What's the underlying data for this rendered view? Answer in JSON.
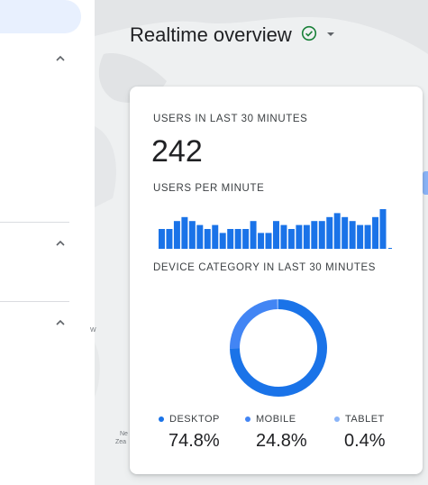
{
  "header": {
    "title": "Realtime overview",
    "status_icon": "check-circle-icon",
    "menu_icon": "dropdown-arrow-icon"
  },
  "nav": {
    "collapse_icon": "chevron-up-icon",
    "sections": 3
  },
  "card": {
    "users_label": "USERS IN LAST 30 MINUTES",
    "users_value": "242",
    "per_minute_label": "USERS PER MINUTE",
    "device_label": "DEVICE CATEGORY IN LAST 30 MINUTES",
    "legend": [
      {
        "label": "DESKTOP",
        "value": "74.8%",
        "color": "#1a73e8"
      },
      {
        "label": "MOBILE",
        "value": "24.8%",
        "color": "#4285f4"
      },
      {
        "label": "TABLET",
        "value": "0.4%",
        "color": "#8ab4f8"
      }
    ]
  },
  "map_labels": {
    "w": "W",
    "ne": "Ne",
    "ze": "Zea"
  },
  "colors": {
    "bar": "#1a73e8",
    "accent": "#188038"
  },
  "chart_data": [
    {
      "type": "bar",
      "title": "USERS PER MINUTE",
      "values": [
        5,
        5,
        7,
        8,
        7,
        6,
        5,
        6,
        4,
        5,
        5,
        5,
        7,
        4,
        4,
        7,
        6,
        5,
        6,
        6,
        7,
        7,
        8,
        9,
        8,
        7,
        6,
        6,
        8,
        10
      ],
      "ylim": [
        0,
        10
      ]
    },
    {
      "type": "pie",
      "title": "DEVICE CATEGORY IN LAST 30 MINUTES",
      "categories": [
        "DESKTOP",
        "MOBILE",
        "TABLET"
      ],
      "values": [
        74.8,
        24.8,
        0.4
      ]
    }
  ]
}
